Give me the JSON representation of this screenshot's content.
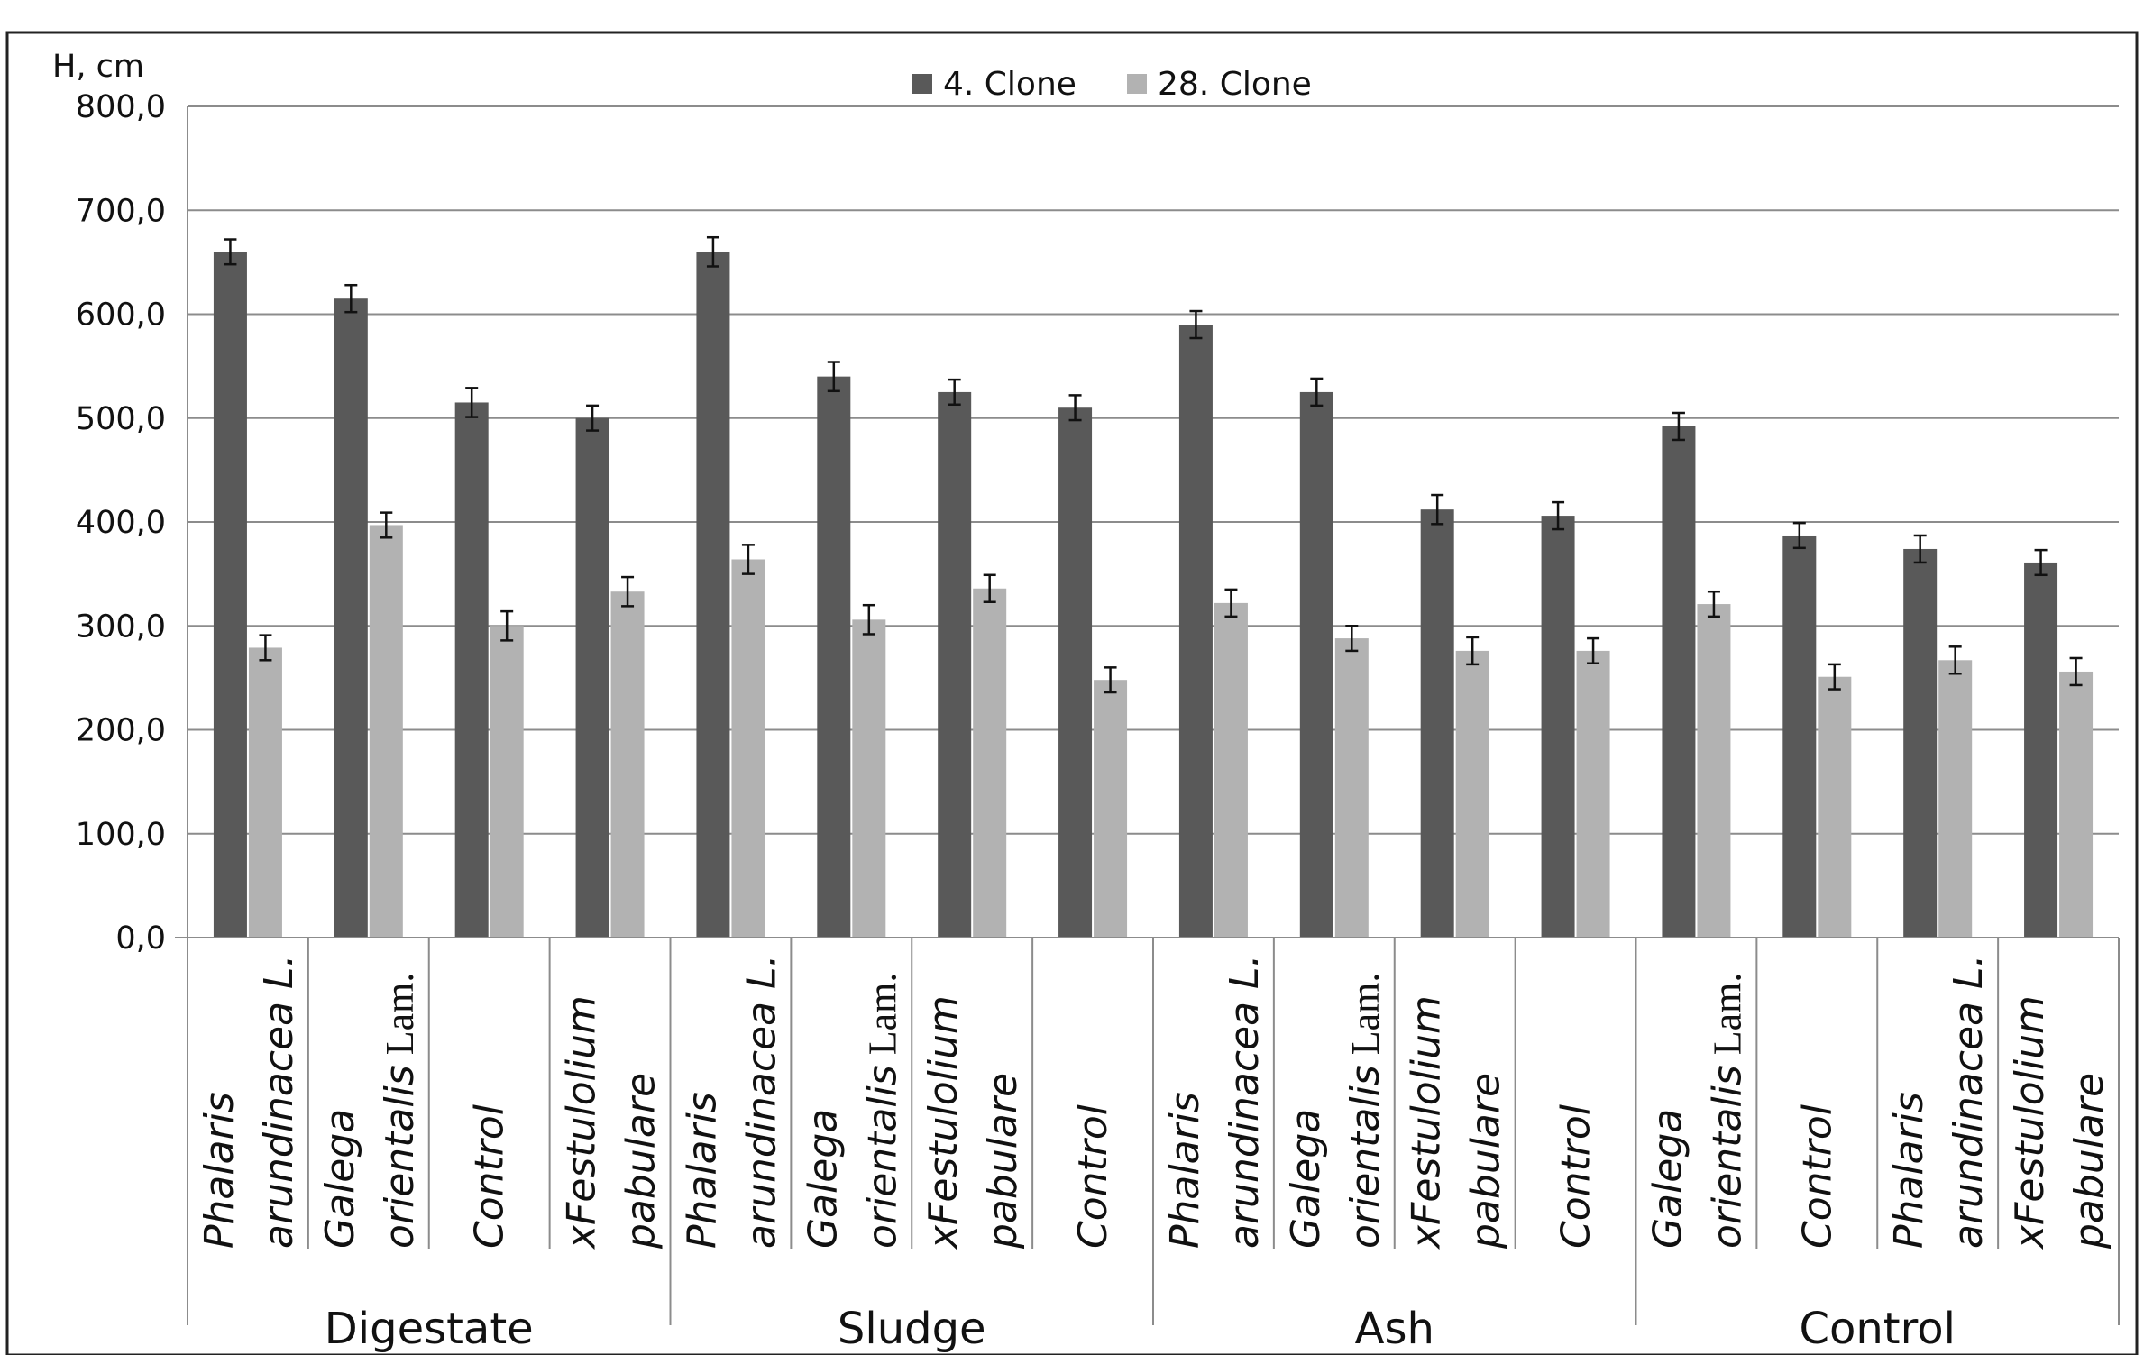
{
  "chart_data": {
    "type": "bar",
    "ylabel": "H, cm",
    "ylim": [
      0,
      800
    ],
    "yticks": [
      "0,0",
      "100,0",
      "200,0",
      "300,0",
      "400,0",
      "500,0",
      "600,0",
      "700,0",
      "800,0"
    ],
    "grid": true,
    "legend_position": "top-center",
    "series": [
      {
        "name": "4. Clone",
        "color": "#595959",
        "values": [
          660,
          615,
          515,
          500,
          660,
          540,
          525,
          510,
          590,
          525,
          412,
          406,
          492,
          387,
          374,
          361
        ],
        "errors": [
          12,
          13,
          14,
          12,
          14,
          14,
          12,
          12,
          13,
          13,
          14,
          13,
          13,
          12,
          13,
          12
        ]
      },
      {
        "name": "28. Clone",
        "color": "#b2b2b2",
        "values": [
          279,
          397,
          300,
          333,
          364,
          306,
          336,
          248,
          322,
          288,
          276,
          276,
          321,
          251,
          267,
          256
        ],
        "errors": [
          12,
          12,
          14,
          14,
          14,
          14,
          13,
          12,
          13,
          12,
          13,
          12,
          12,
          12,
          13,
          13
        ]
      }
    ],
    "groups": [
      {
        "name": "Digestate",
        "categories": [
          {
            "line1": "Phalaris",
            "line2": "arundinacea L."
          },
          {
            "line1": "Galega",
            "line2": "orientalis",
            "line2_suffix": " Lam."
          },
          {
            "line1": "Control",
            "line2": ""
          },
          {
            "line1": "xFestulolium",
            "line2": "pabulare"
          }
        ]
      },
      {
        "name": "Sludge",
        "categories": [
          {
            "line1": "Phalaris",
            "line2": "arundinacea L."
          },
          {
            "line1": "Galega",
            "line2": "orientalis",
            "line2_suffix": " Lam."
          },
          {
            "line1": "xFestulolium",
            "line2": "pabulare"
          },
          {
            "line1": "Control",
            "line2": ""
          }
        ]
      },
      {
        "name": "Ash",
        "categories": [
          {
            "line1": "Phalaris",
            "line2": "arundinacea L."
          },
          {
            "line1": "Galega",
            "line2": "orientalis",
            "line2_suffix": " Lam."
          },
          {
            "line1": "xFestulolium",
            "line2": "pabulare"
          },
          {
            "line1": "Control",
            "line2": ""
          }
        ]
      },
      {
        "name": "Control",
        "categories": [
          {
            "line1": "Galega",
            "line2": "orientalis",
            "line2_suffix": " Lam."
          },
          {
            "line1": "Control",
            "line2": ""
          },
          {
            "line1": "Phalaris",
            "line2": "arundinacea L."
          },
          {
            "line1": "xFestulolium",
            "line2": "pabulare"
          }
        ]
      }
    ]
  }
}
